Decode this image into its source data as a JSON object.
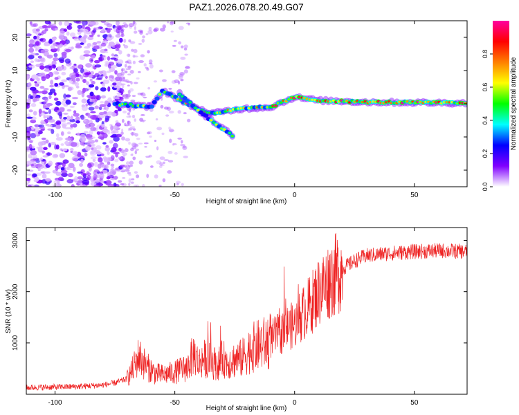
{
  "figure_title": "PAZ1.2026.078.20.49.G07",
  "chart_data": [
    {
      "type": "heatmap",
      "title": "PAZ1.2026.078.20.49.G07",
      "xlabel": "Height of straight line (km)",
      "ylabel": "Frequency (Hz)",
      "xlim": [
        -112,
        72
      ],
      "ylim": [
        -25,
        25
      ],
      "xticks": [
        -100,
        -50,
        0,
        50
      ],
      "yticks": [
        -20,
        -10,
        0,
        10,
        20
      ],
      "colorbar": {
        "label": "Normalized spectral amplitude",
        "range": [
          0,
          1
        ],
        "ticks": [
          "0.0",
          "0.2",
          "0.4",
          "0.6",
          "0.8"
        ],
        "stops": [
          "#ffffff",
          "#8000ff",
          "#0000ff",
          "#00ffff",
          "#00ff00",
          "#ffff00",
          "#ff8000",
          "#ff0000",
          "#ff00a0"
        ]
      },
      "ridge": {
        "description_points_km_hz": [
          [
            -75,
            0
          ],
          [
            -60,
            -1
          ],
          [
            -55,
            4
          ],
          [
            -45,
            0
          ],
          [
            -35,
            -3
          ],
          [
            -22,
            -1.5
          ],
          [
            -10,
            -1
          ],
          [
            0,
            2
          ],
          [
            10,
            1
          ],
          [
            30,
            0.5
          ],
          [
            72,
            0.2
          ]
        ],
        "secondary_branch_km_hz": [
          [
            -48,
            3
          ],
          [
            -40,
            -2
          ],
          [
            -33,
            -6
          ],
          [
            -25,
            -10
          ]
        ]
      }
    },
    {
      "type": "line",
      "xlabel": "Height of straight line (km)",
      "ylabel": "SNR (10 * v/v)",
      "xlim": [
        -112,
        72
      ],
      "ylim": [
        0,
        3250
      ],
      "xticks": [
        -100,
        -50,
        0,
        50
      ],
      "yticks": [
        1000,
        2000,
        3000
      ],
      "series": [
        {
          "name": "SNR",
          "color": "#ee2222",
          "x": [
            -112,
            -100,
            -90,
            -80,
            -75,
            -70,
            -68,
            -65,
            -62,
            -58,
            -55,
            -50,
            -45,
            -42,
            -40,
            -38,
            -35,
            -32,
            -30,
            -28,
            -25,
            -22,
            -20,
            -18,
            -15,
            -12,
            -10,
            -8,
            -5,
            -3,
            0,
            2,
            5,
            8,
            10,
            15,
            20,
            25,
            30,
            40,
            50,
            60,
            72
          ],
          "y": [
            130,
            140,
            150,
            180,
            220,
            300,
            450,
            750,
            550,
            400,
            380,
            430,
            520,
            800,
            600,
            700,
            650,
            580,
            700,
            620,
            680,
            700,
            800,
            900,
            950,
            1000,
            1050,
            1150,
            1200,
            1300,
            1350,
            1500,
            1650,
            1850,
            2000,
            2250,
            2450,
            2600,
            2700,
            2750,
            2780,
            2800,
            2780
          ]
        }
      ]
    }
  ]
}
